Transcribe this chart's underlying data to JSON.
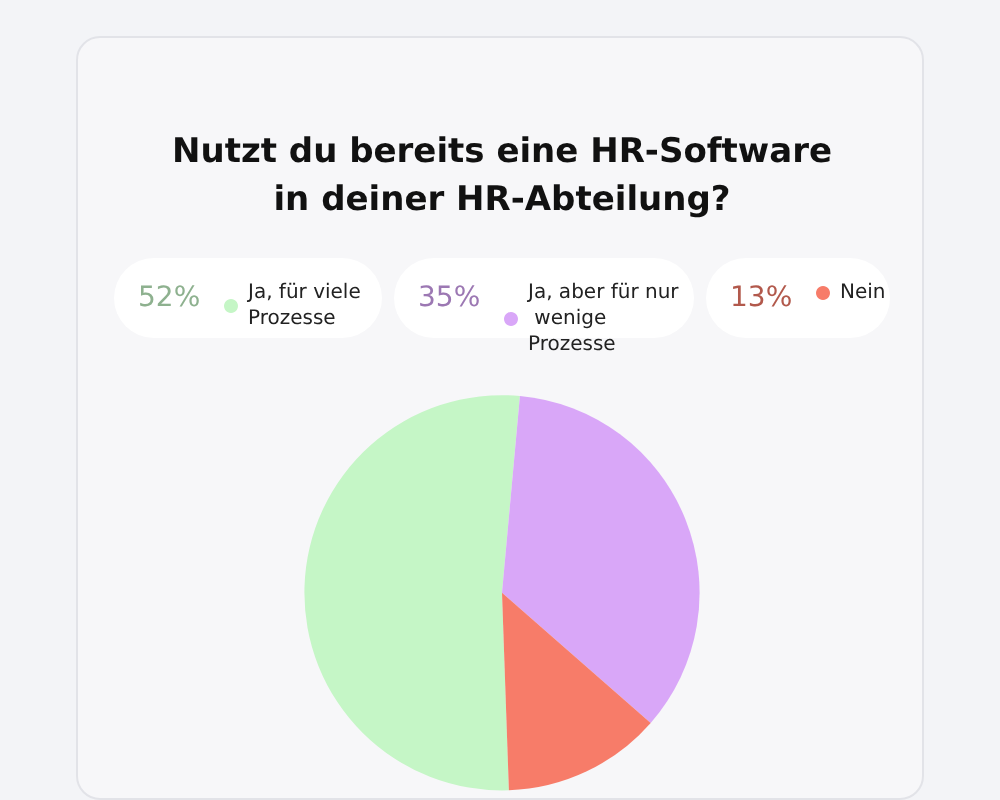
{
  "chart_data": {
    "type": "pie",
    "title": "Nutzt du bereits eine HR-Software\nin deiner HR-Abteilung?",
    "categories": [
      "Ja, für viele Prozesse",
      "Ja, aber für nur wenige Prozesse",
      "Nein"
    ],
    "values": [
      52,
      35,
      13
    ],
    "value_labels": [
      "52%",
      "35%",
      "13%"
    ],
    "colors": [
      "#c5f6c6",
      "#d9a7f8",
      "#f77c69"
    ],
    "legend": "top"
  }
}
